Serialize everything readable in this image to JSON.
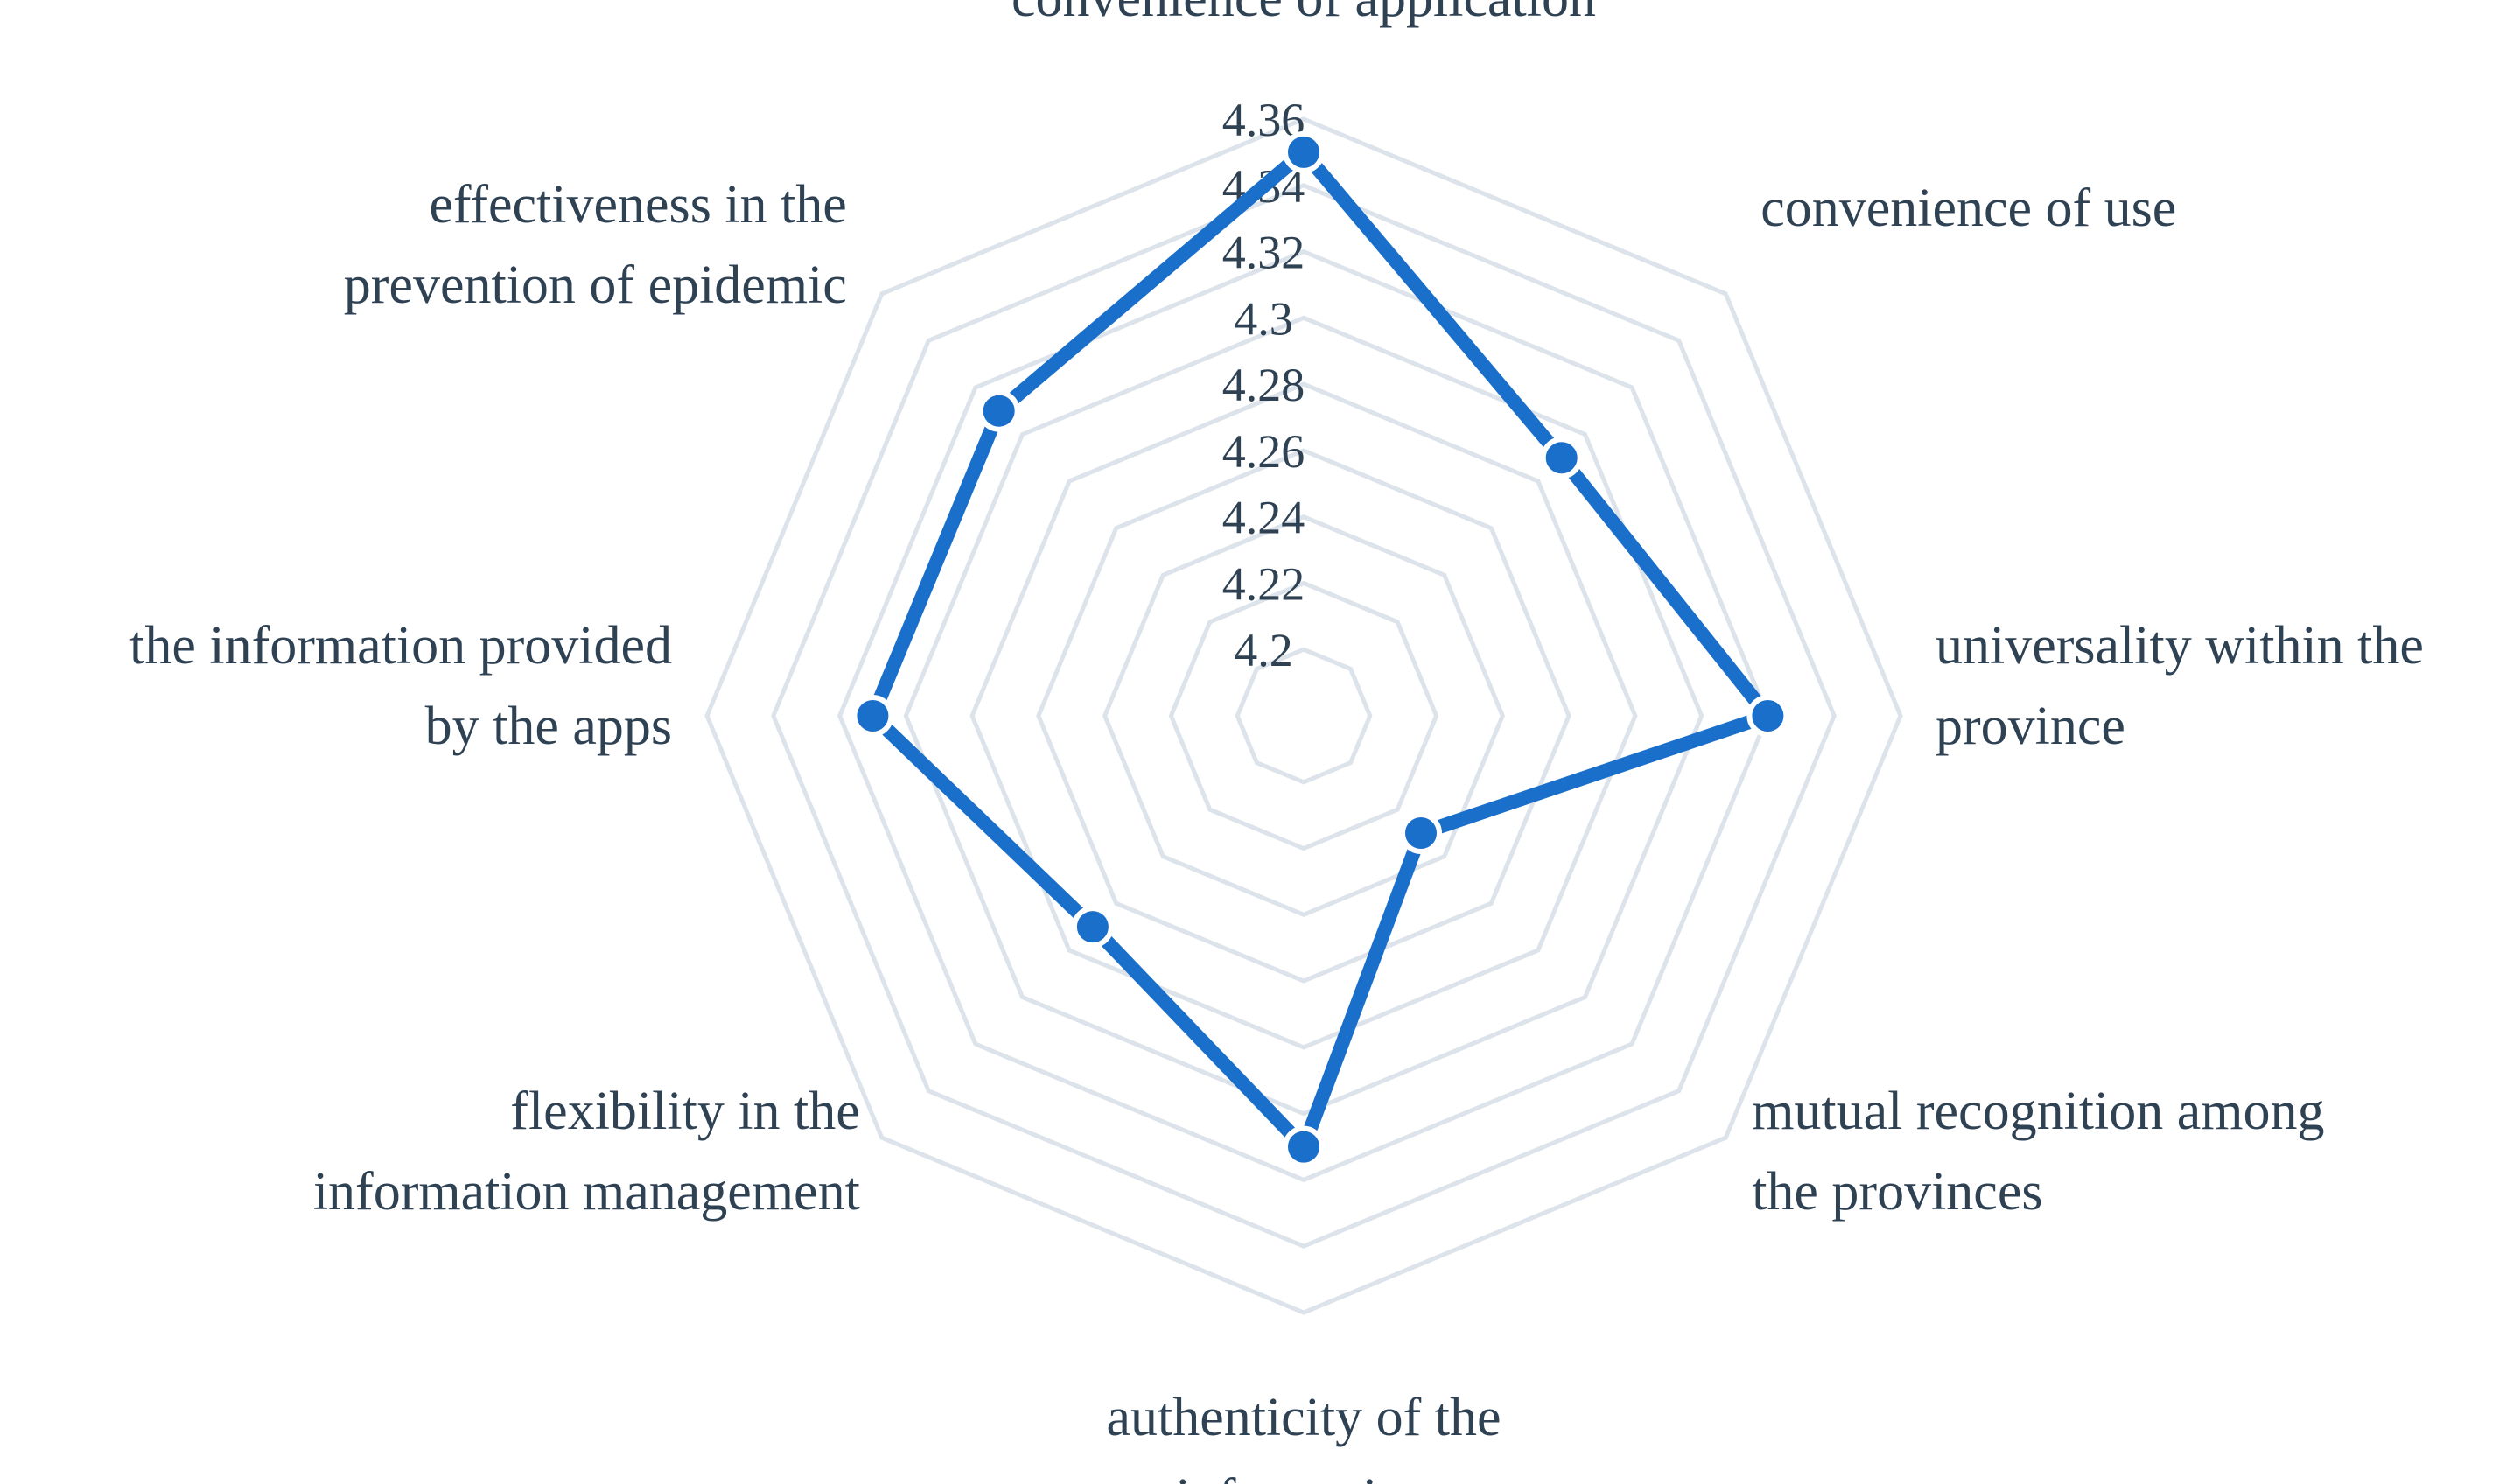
{
  "chart_data": {
    "type": "radar",
    "axes": [
      [
        "convenience of application"
      ],
      [
        "convenience of use"
      ],
      [
        "universality within the",
        "province"
      ],
      [
        "mutual recognition among",
        "the provinces"
      ],
      [
        "authenticity of the",
        "information"
      ],
      [
        "flexibility in the",
        "information management"
      ],
      [
        "the information provided",
        "by the apps"
      ],
      [
        "effectiveness in the",
        "prevention of epidemic"
      ]
    ],
    "ticks": [
      "4.36",
      "4.34",
      "4.32",
      "4.3",
      "4.28",
      "4.26",
      "4.24",
      "4.22",
      "4.2"
    ],
    "rlim": [
      4.18,
      4.36
    ],
    "series": [
      {
        "values": [
          4.35,
          4.29,
          4.32,
          4.23,
          4.31,
          4.27,
          4.31,
          4.31
        ],
        "color": "#1a6fcb"
      }
    ],
    "grid": true
  }
}
